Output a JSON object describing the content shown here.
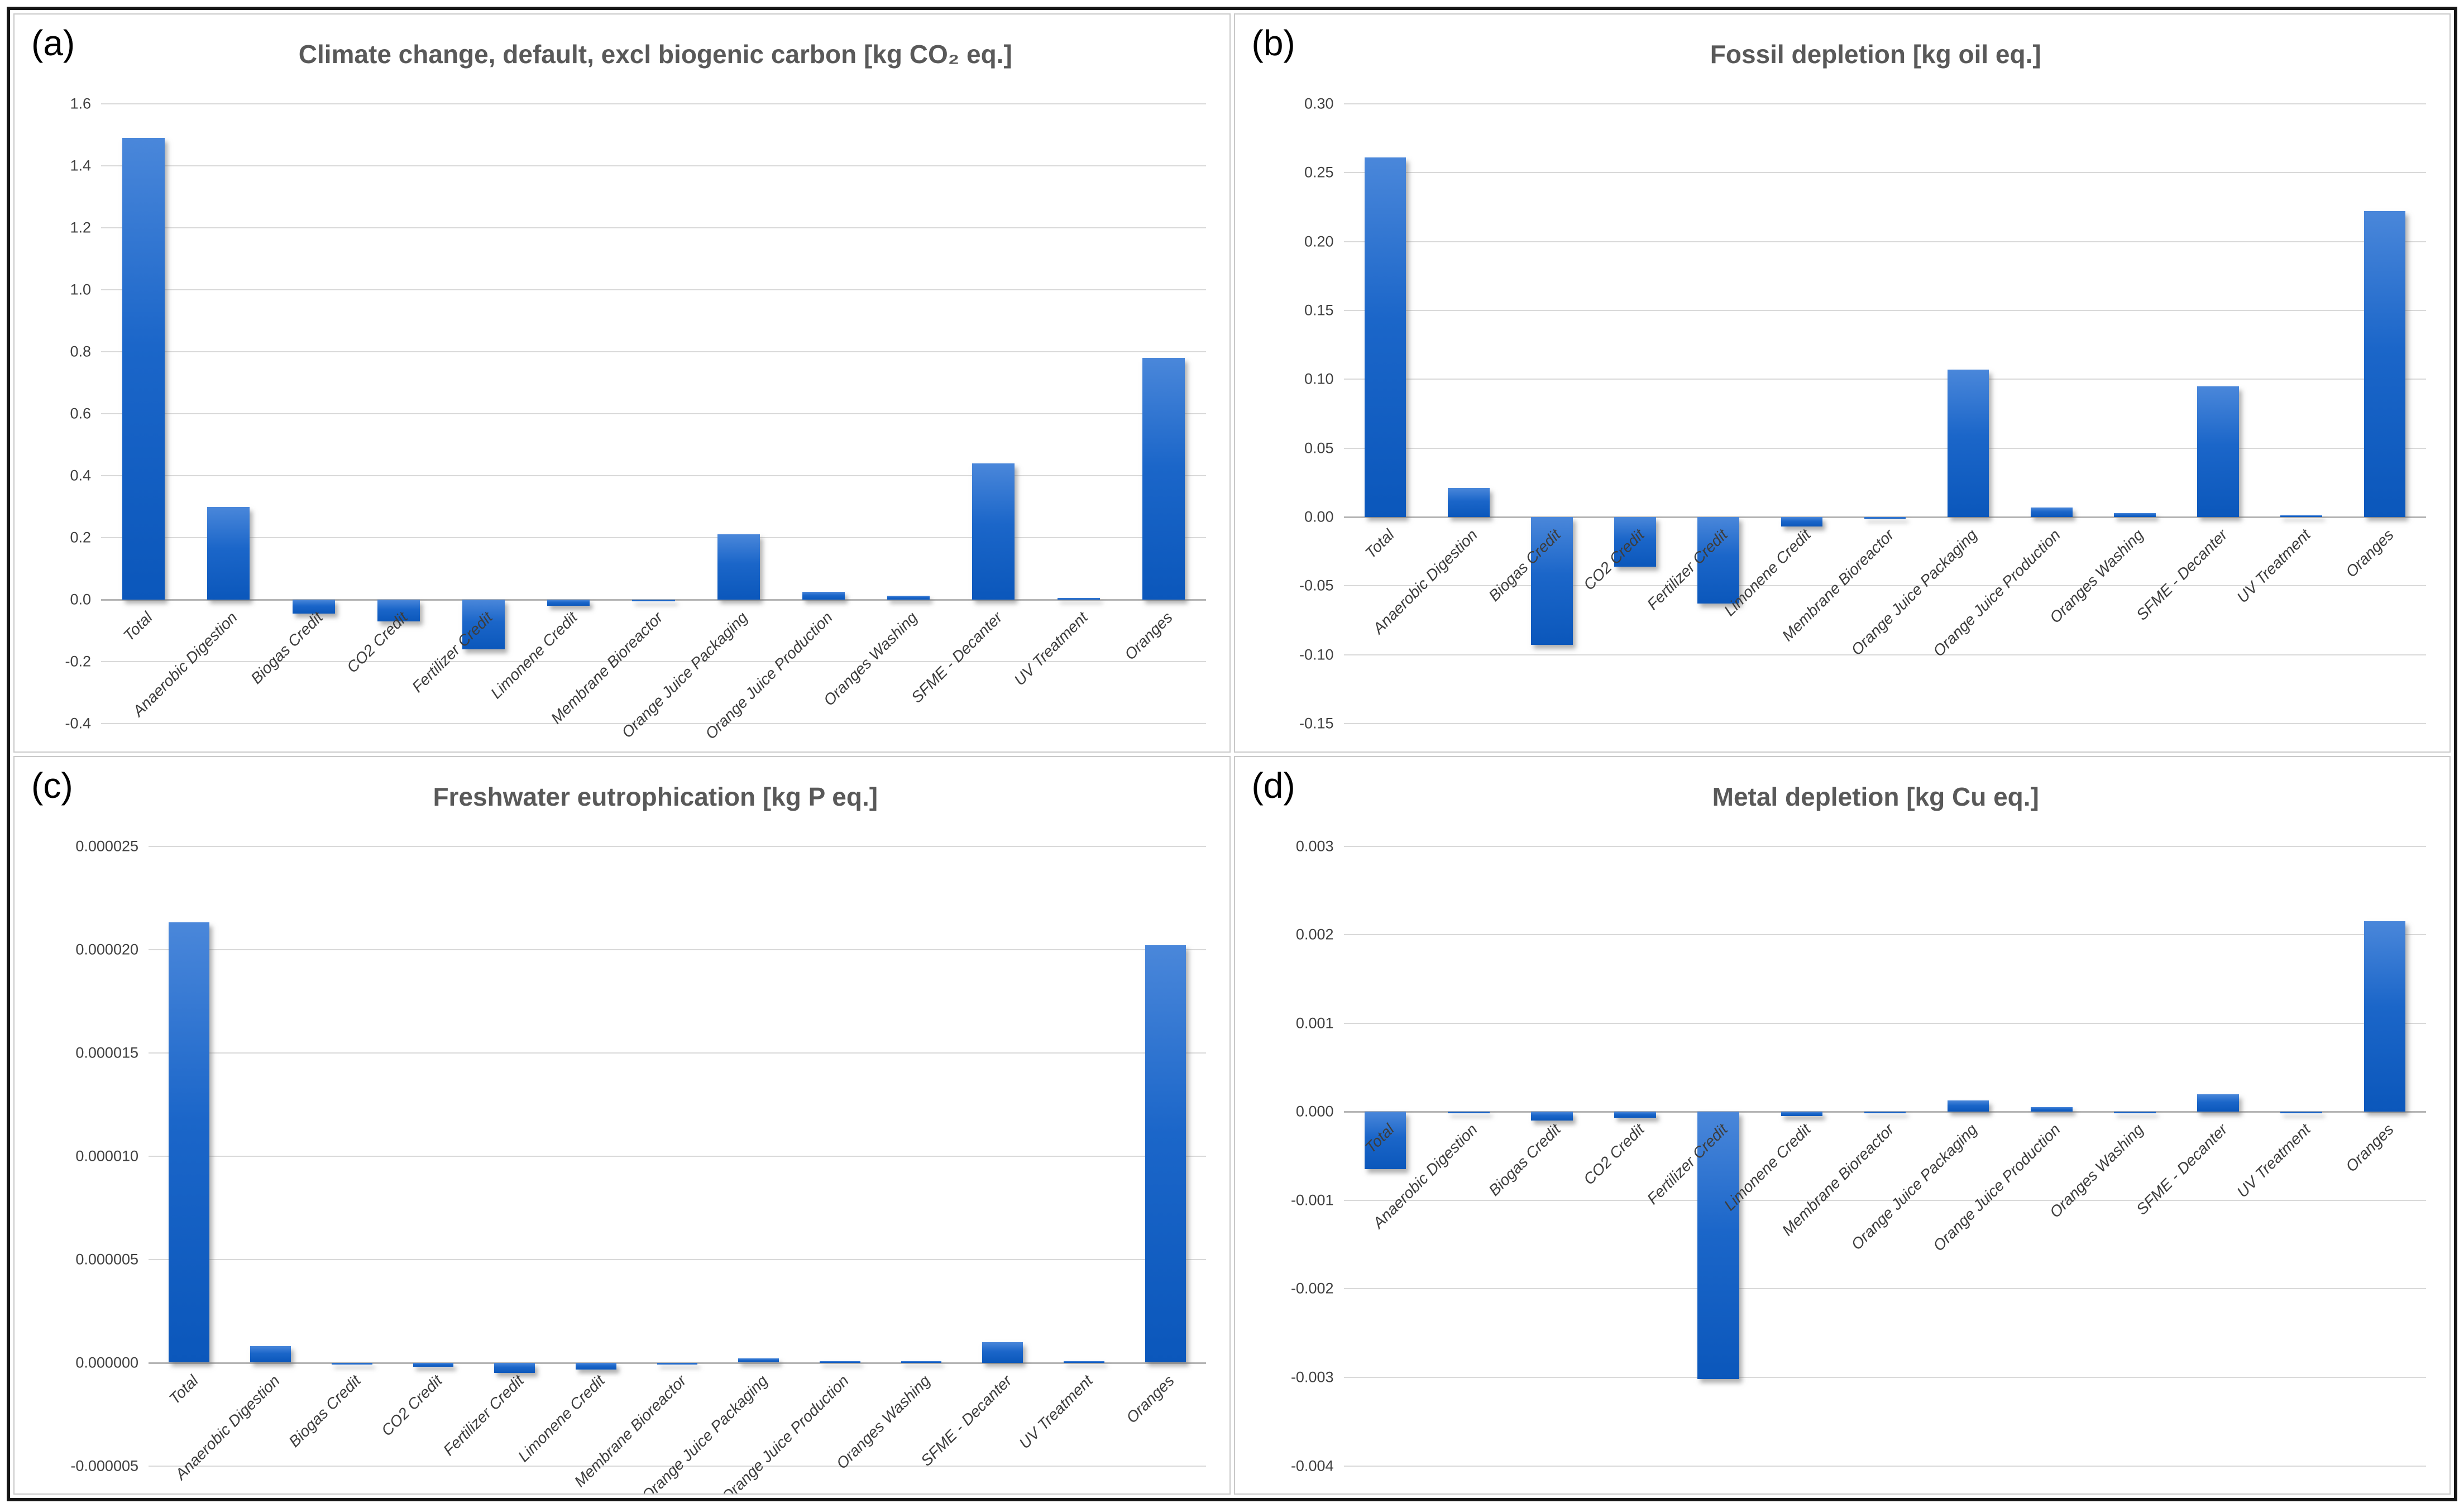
{
  "colors": {
    "bar_top": "#4a87da",
    "bar_mid": "#1b66c9",
    "bar_bottom": "#0b57bb",
    "title_text": "#595959",
    "tick_text": "#404040",
    "category_text": "#3d3d3d",
    "gridline": "#d9d9d9",
    "zero_line": "#b5b5b5",
    "panel_border": "#c9c9c9",
    "outer_border": "#161616"
  },
  "chart_data": [
    {
      "type": "bar",
      "id": "a",
      "panel_label": "(a)",
      "title": "Climate change, default, excl biogenic carbon [kg CO₂ eq.]",
      "xlabel": "",
      "ylabel": "",
      "grid": true,
      "legend": false,
      "ylim": [
        -0.4,
        1.6
      ],
      "yticks": [
        1.6,
        1.4,
        1.2,
        1.0,
        0.8,
        0.6,
        0.4,
        0.2,
        0.0,
        -0.2,
        -0.4
      ],
      "ytick_labels": [
        "1.6",
        "1.4",
        "1.2",
        "1.0",
        "0.8",
        "0.6",
        "0.4",
        "0.2",
        "0.0",
        "-0.2",
        "-0.4"
      ],
      "categories": [
        "Total",
        "Anaerobic Digestion",
        "Biogas Credit",
        "CO2 Credit",
        "Fertilizer Credit",
        "Limonene Credit",
        "Membrane Bioreactor",
        "Orange Juice Packaging",
        "Orange Juice Production",
        "Oranges Washing",
        "SFME - Decanter",
        "UV Treatment",
        "Oranges"
      ],
      "values": [
        1.49,
        0.3,
        -0.045,
        -0.07,
        -0.16,
        -0.02,
        -0.005,
        0.21,
        0.025,
        0.012,
        0.44,
        0.001,
        0.78
      ]
    },
    {
      "type": "bar",
      "id": "b",
      "panel_label": "(b)",
      "title": "Fossil depletion [kg oil eq.]",
      "xlabel": "",
      "ylabel": "",
      "grid": true,
      "legend": false,
      "ylim": [
        -0.15,
        0.3
      ],
      "yticks": [
        0.3,
        0.25,
        0.2,
        0.15,
        0.1,
        0.05,
        0.0,
        -0.05,
        -0.1,
        -0.15
      ],
      "ytick_labels": [
        "0.30",
        "0.25",
        "0.20",
        "0.15",
        "0.10",
        "0.05",
        "0.00",
        "-0.05",
        "-0.10",
        "-0.15"
      ],
      "categories": [
        "Total",
        "Anaerobic Digestion",
        "Biogas Credit",
        "CO2 Credit",
        "Fertilizer Credit",
        "Limonene Credit",
        "Membrane Bioreactor",
        "Orange Juice Packaging",
        "Orange Juice Production",
        "Oranges Washing",
        "SFME - Decanter",
        "UV Treatment",
        "Oranges"
      ],
      "values": [
        0.261,
        0.021,
        -0.093,
        -0.036,
        -0.063,
        -0.007,
        -0.001,
        0.107,
        0.007,
        0.003,
        0.095,
        0.001,
        0.222
      ]
    },
    {
      "type": "bar",
      "id": "c",
      "panel_label": "(c)",
      "title": "Freshwater eutrophication [kg P eq.]",
      "xlabel": "",
      "ylabel": "",
      "grid": true,
      "legend": false,
      "ylim": [
        -5e-06,
        2.5e-05
      ],
      "yticks": [
        2.5e-05,
        2e-05,
        1.5e-05,
        1e-05,
        5e-06,
        0,
        -5e-06
      ],
      "ytick_labels": [
        "0.000025",
        "0.000020",
        "0.000015",
        "0.000010",
        "0.000005",
        "0.000000",
        "-0.000005"
      ],
      "categories": [
        "Total",
        "Anaerobic Digestion",
        "Biogas Credit",
        "CO2 Credit",
        "Fertilizer Credit",
        "Limonene Credit",
        "Membrane Bioreactor",
        "Orange Juice Packaging",
        "Orange Juice Production",
        "Oranges Washing",
        "SFME - Decanter",
        "UV Treatment",
        "Oranges"
      ],
      "values": [
        2.13e-05,
        8e-07,
        -5e-08,
        -2e-07,
        -5e-07,
        -3.5e-07,
        -5e-08,
        2e-07,
        5e-08,
        5e-08,
        1e-06,
        5e-08,
        2.02e-05
      ]
    },
    {
      "type": "bar",
      "id": "d",
      "panel_label": "(d)",
      "title": "Metal depletion [kg Cu eq.]",
      "xlabel": "",
      "ylabel": "",
      "grid": true,
      "legend": false,
      "ylim": [
        -0.004,
        0.003
      ],
      "yticks": [
        0.003,
        0.002,
        0.001,
        0.0,
        -0.001,
        -0.002,
        -0.003,
        -0.004
      ],
      "ytick_labels": [
        "0.003",
        "0.002",
        "0.001",
        "0.000",
        "-0.001",
        "-0.002",
        "-0.003",
        "-0.004"
      ],
      "categories": [
        "Total",
        "Anaerobic Digestion",
        "Biogas Credit",
        "CO2 Credit",
        "Fertilizer Credit",
        "Limonene Credit",
        "Membrane Bioreactor",
        "Orange Juice Packaging",
        "Orange Juice Production",
        "Oranges Washing",
        "SFME - Decanter",
        "UV Treatment",
        "Oranges"
      ],
      "values": [
        -0.00065,
        -2e-05,
        -0.0001,
        -7e-05,
        -0.00302,
        -5e-05,
        -2e-05,
        0.00013,
        5e-05,
        -1e-05,
        0.0002,
        -1e-05,
        0.00215
      ]
    }
  ]
}
